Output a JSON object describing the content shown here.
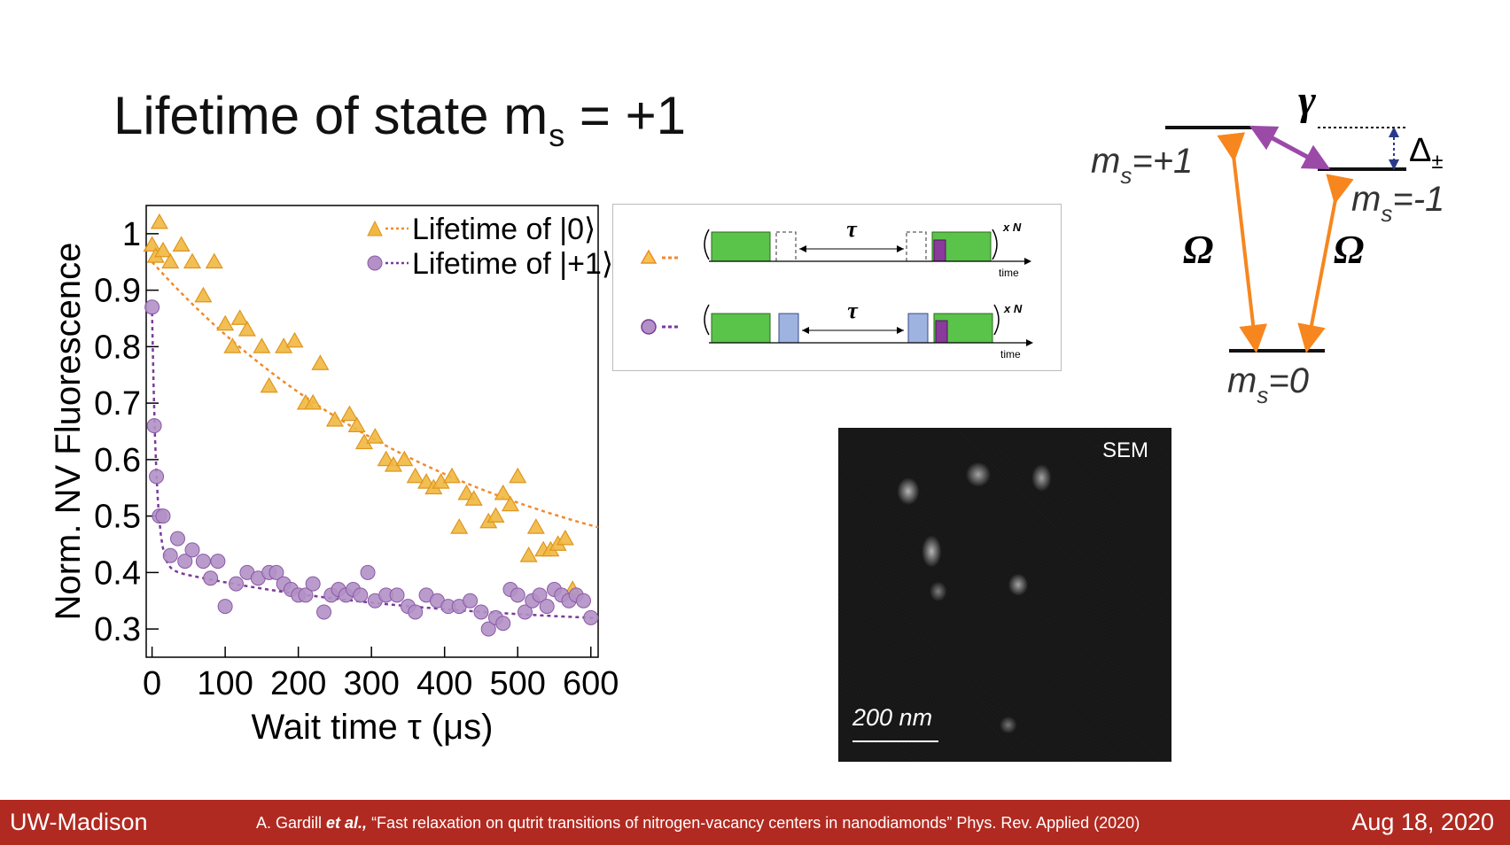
{
  "slide": {
    "title": "Lifetime of state m",
    "title_sub": "s",
    "title_suffix": " = +1"
  },
  "chart_data": {
    "type": "scatter",
    "xlabel": "Wait time τ (μs)",
    "ylabel": "Norm. NV Fluorescence",
    "xlim": [
      -8,
      610
    ],
    "ylim": [
      0.25,
      1.05
    ],
    "xticks": [
      0,
      100,
      200,
      300,
      400,
      500,
      600
    ],
    "yticks": [
      0.3,
      0.4,
      0.5,
      0.6,
      0.7,
      0.8,
      0.9,
      1
    ],
    "ytick_labels": [
      "0.3",
      "0.4",
      "0.5",
      "0.6",
      "0.7",
      "0.8",
      "0.9",
      "1"
    ],
    "legend_position": "top-right",
    "series": [
      {
        "name": "Lifetime of |0⟩",
        "marker": "triangle",
        "color": "#f0b840",
        "fit_color": "#f08a2c",
        "fit": {
          "a": 0.62,
          "tau": 430,
          "c": 0.33
        },
        "x": [
          0,
          5,
          10,
          15,
          25,
          40,
          55,
          70,
          85,
          100,
          110,
          120,
          130,
          150,
          160,
          180,
          195,
          210,
          220,
          230,
          250,
          270,
          280,
          290,
          305,
          320,
          330,
          345,
          360,
          375,
          385,
          395,
          410,
          420,
          430,
          440,
          460,
          470,
          480,
          490,
          500,
          515,
          525,
          535,
          545,
          555,
          565,
          575
        ],
        "y": [
          0.98,
          0.96,
          1.02,
          0.97,
          0.95,
          0.98,
          0.95,
          0.89,
          0.95,
          0.84,
          0.8,
          0.85,
          0.83,
          0.8,
          0.73,
          0.8,
          0.81,
          0.7,
          0.7,
          0.77,
          0.67,
          0.68,
          0.66,
          0.63,
          0.64,
          0.6,
          0.59,
          0.6,
          0.57,
          0.56,
          0.55,
          0.56,
          0.57,
          0.48,
          0.54,
          0.53,
          0.49,
          0.5,
          0.54,
          0.52,
          0.57,
          0.43,
          0.48,
          0.44,
          0.44,
          0.45,
          0.46,
          0.37
        ]
      },
      {
        "name": "Lifetime of |+1⟩",
        "marker": "circle",
        "color": "#b391c7",
        "fit_color": "#7a3a9a",
        "fit": {
          "a1": 0.45,
          "tau1": 6,
          "a2": 0.11,
          "tau2": 350,
          "c": 0.3
        },
        "x": [
          0,
          3,
          6,
          10,
          15,
          25,
          35,
          45,
          55,
          70,
          80,
          90,
          100,
          115,
          130,
          145,
          160,
          170,
          180,
          190,
          200,
          210,
          220,
          235,
          245,
          255,
          265,
          275,
          285,
          295,
          305,
          320,
          335,
          350,
          360,
          375,
          390,
          405,
          420,
          435,
          450,
          460,
          470,
          480,
          490,
          500,
          510,
          520,
          530,
          540,
          550,
          560,
          570,
          580,
          590,
          600
        ],
        "y": [
          0.87,
          0.66,
          0.57,
          0.5,
          0.5,
          0.43,
          0.46,
          0.42,
          0.44,
          0.42,
          0.39,
          0.42,
          0.34,
          0.38,
          0.4,
          0.39,
          0.4,
          0.4,
          0.38,
          0.37,
          0.36,
          0.36,
          0.38,
          0.33,
          0.36,
          0.37,
          0.36,
          0.37,
          0.36,
          0.4,
          0.35,
          0.36,
          0.36,
          0.34,
          0.33,
          0.36,
          0.35,
          0.34,
          0.34,
          0.35,
          0.33,
          0.3,
          0.32,
          0.31,
          0.37,
          0.36,
          0.33,
          0.35,
          0.36,
          0.34,
          0.37,
          0.36,
          0.35,
          0.36,
          0.35,
          0.32
        ]
      }
    ]
  },
  "sequence": {
    "tau": "τ",
    "repeat": "x N",
    "time_label": "time"
  },
  "levels": {
    "plus_label": "m",
    "plus_sub": "s",
    "plus_value": "=+1",
    "minus_label": "m",
    "minus_sub": "s",
    "minus_value": "=-1",
    "zero_label": "m",
    "zero_sub": "s",
    "zero_value": "=0",
    "gamma": "γ",
    "omega": "Ω",
    "delta": "Δ",
    "delta_sub": "±"
  },
  "sem": {
    "tag": "SEM",
    "scale": "200 nm"
  },
  "footer": {
    "left": "UW-Madison",
    "citation_pre": "A. Gardill ",
    "citation_etal": "et al.,",
    "citation_post": " “Fast relaxation on qutrit transitions of nitrogen-vacancy centers in nanodiamonds” Phys. Rev. Applied (2020)",
    "date": "Aug 18, 2020"
  }
}
